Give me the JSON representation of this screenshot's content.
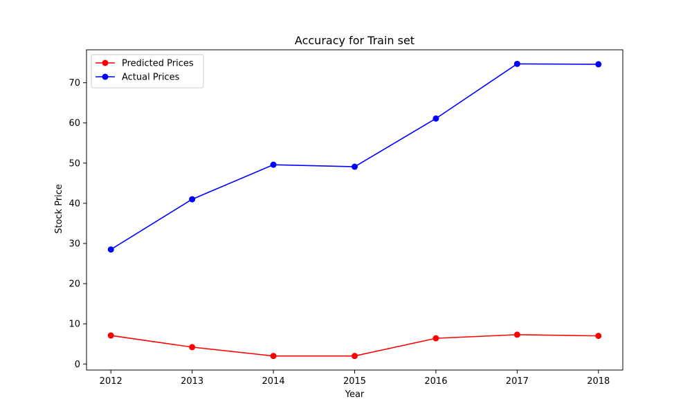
{
  "chart_data": {
    "type": "line",
    "title": "Accuracy for Train set",
    "xlabel": "Year",
    "ylabel": "Stock Price",
    "x": [
      2012,
      2013,
      2014,
      2015,
      2016,
      2017,
      2018
    ],
    "xlim": [
      2011.7,
      2018.3
    ],
    "ylim": [
      -1.5,
      78.2
    ],
    "yticks": [
      0,
      10,
      20,
      30,
      40,
      50,
      60,
      70
    ],
    "grid": false,
    "legend_position": "top-left",
    "series": [
      {
        "name": "Predicted Prices",
        "color": "#ff0000",
        "values": [
          7.1,
          4.2,
          2.0,
          2.0,
          6.4,
          7.3,
          7.0
        ]
      },
      {
        "name": "Actual Prices",
        "color": "#0000ff",
        "values": [
          28.5,
          41.0,
          49.6,
          49.1,
          61.1,
          74.7,
          74.6
        ]
      }
    ]
  }
}
